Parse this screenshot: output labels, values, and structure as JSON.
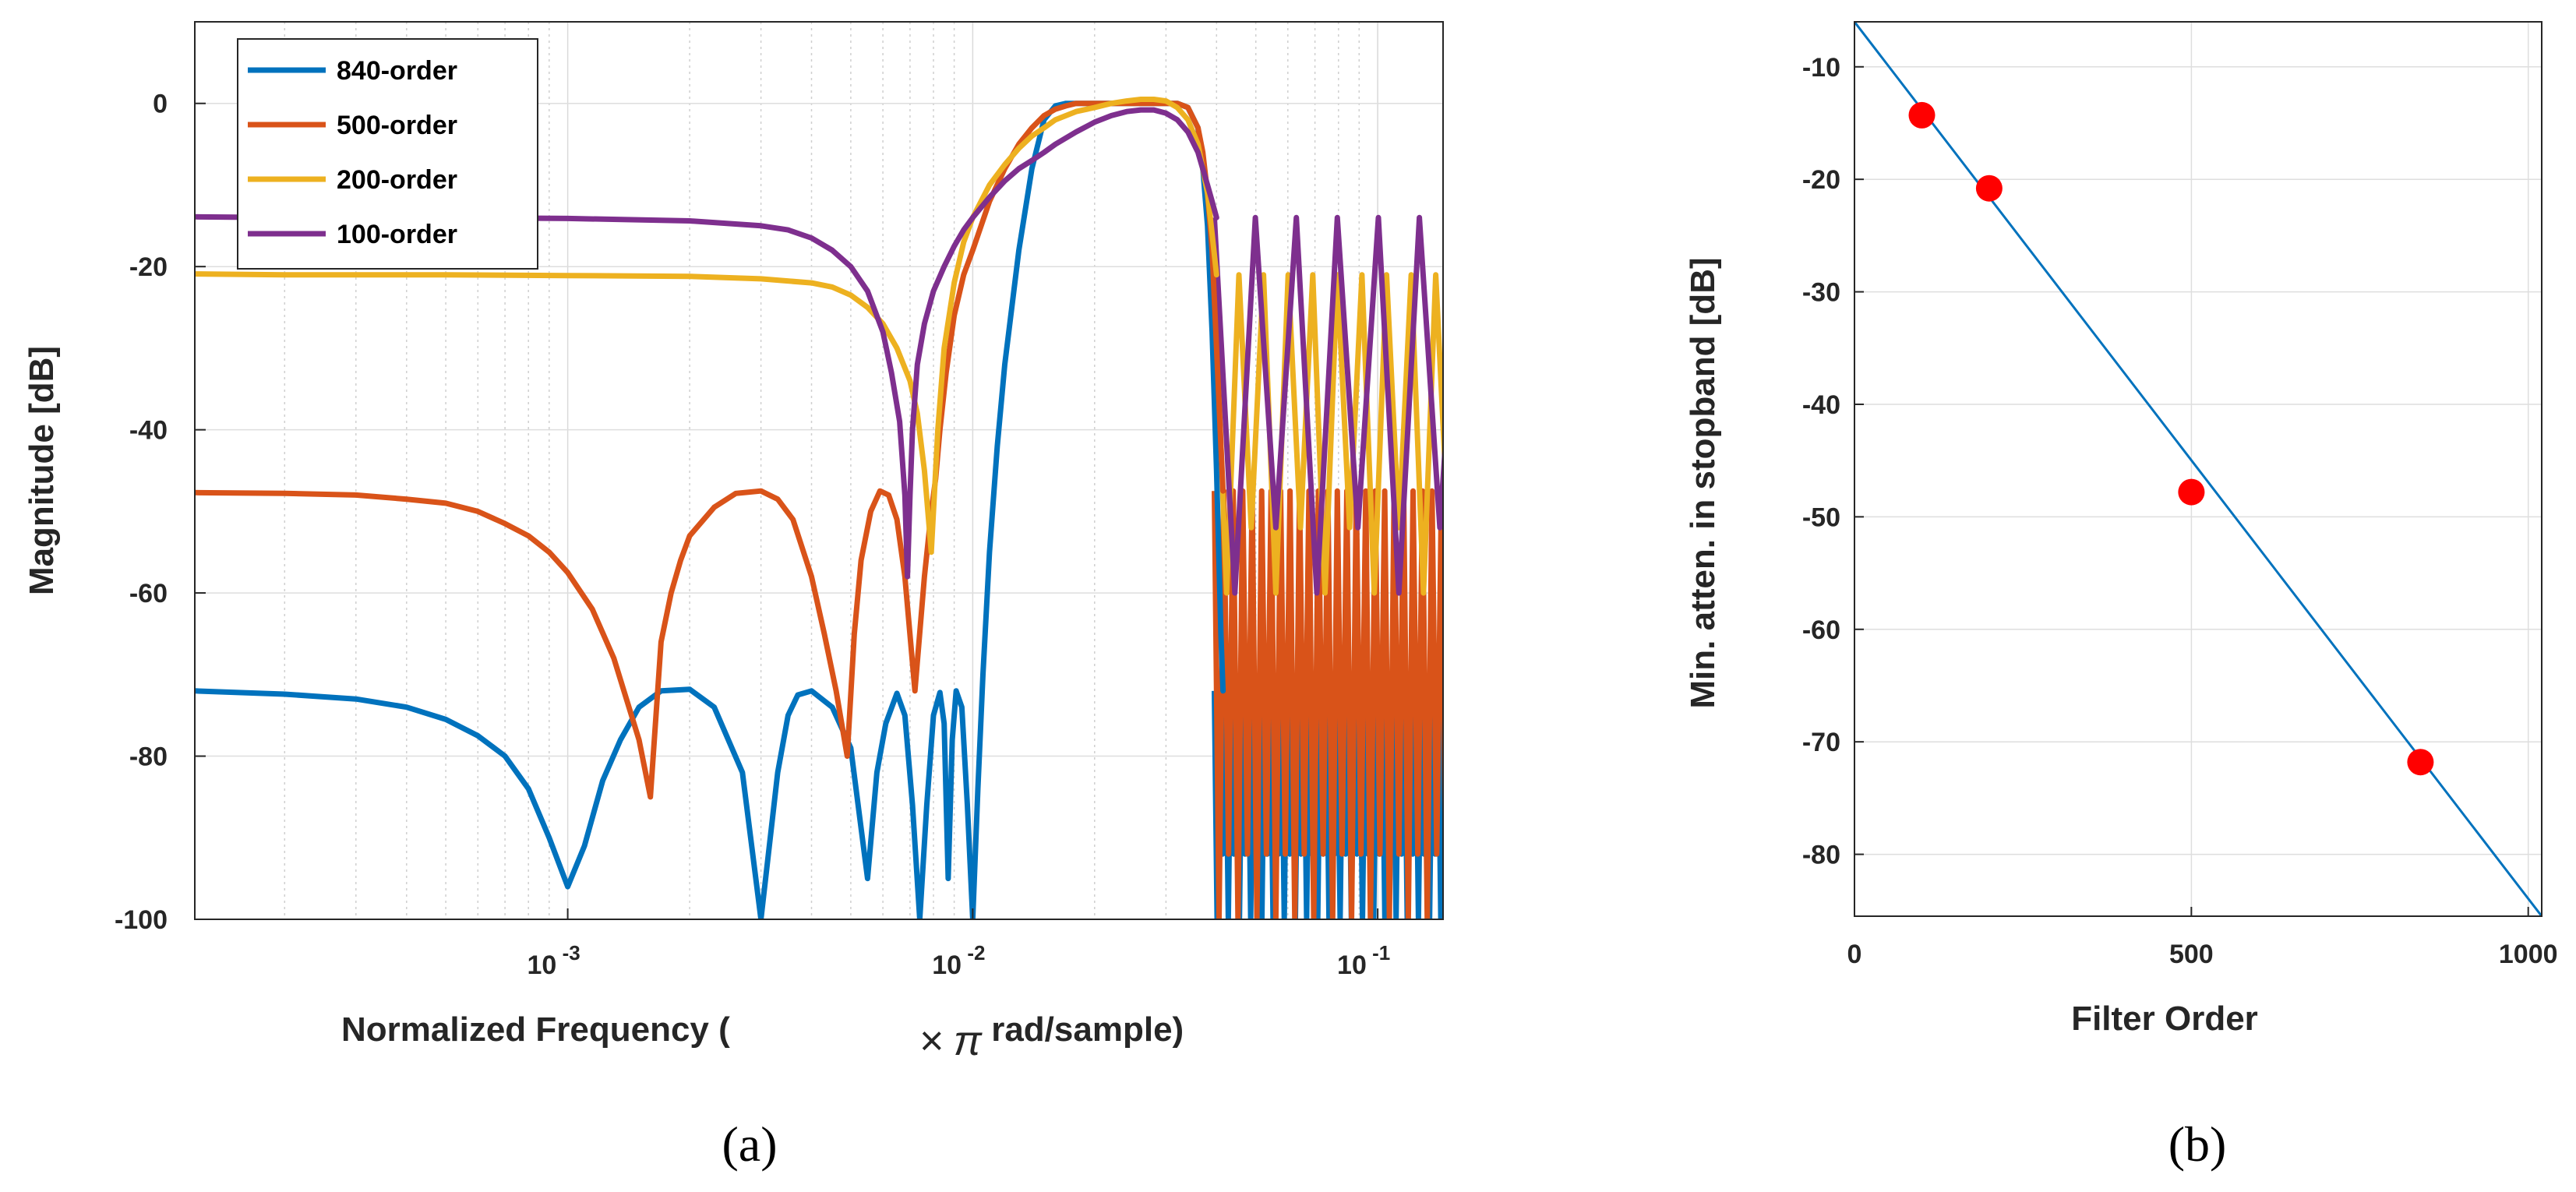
{
  "chart_data": [
    {
      "panel_label": "(a)",
      "type": "line",
      "xlabel_prefix": "Normalized Frequency (",
      "xlabel_times": "×",
      "xlabel_pi": "π",
      "xlabel_suffix": " rad/sample)",
      "ylabel": "Magnitude [dB]",
      "xscale": "log",
      "xlim": [
        0.00012,
        0.145
      ],
      "ylim": [
        -100,
        10
      ],
      "grid": true,
      "yticks": [
        0,
        -20,
        -40,
        -60,
        -80,
        -100
      ],
      "ytick_labels": [
        "0",
        "-20",
        "-40",
        "-60",
        "-80",
        "-100"
      ],
      "xticks": [
        {
          "value": 0.001,
          "base": "10",
          "exp": "-3"
        },
        {
          "value": 0.01,
          "base": "10",
          "exp": "-2"
        },
        {
          "value": 0.1,
          "base": "10",
          "exp": "-1"
        }
      ],
      "legend_position": "top-left",
      "series": [
        {
          "name": "840-order",
          "color": "#0072BD",
          "x": [
            0.00012,
            0.0002,
            0.0003,
            0.0004,
            0.0005,
            0.0006,
            0.0007,
            0.0008,
            0.0009,
            0.001,
            0.0011,
            0.00122,
            0.00135,
            0.0015,
            0.0017,
            0.002,
            0.0023,
            0.0027,
            0.003,
            0.0033,
            0.0035,
            0.0037,
            0.004,
            0.0045,
            0.005,
            0.0055,
            0.0058,
            0.0061,
            0.0065,
            0.0068,
            0.0071,
            0.0074,
            0.0077,
            0.008,
            0.0083,
            0.0085,
            0.0087,
            0.0089,
            0.0091,
            0.0094,
            0.0097,
            0.01,
            0.0103,
            0.0106,
            0.011,
            0.0115,
            0.012,
            0.013,
            0.014,
            0.015,
            0.016,
            0.017,
            0.018,
            0.02,
            0.022,
            0.024,
            0.026,
            0.028,
            0.03,
            0.032,
            0.034,
            0.036,
            0.037,
            0.038,
            0.039,
            0.04,
            0.041,
            0.0415
          ],
          "y": [
            -72,
            -72.4,
            -73,
            -74,
            -75.5,
            -77.5,
            -80,
            -84,
            -90,
            -96,
            -91,
            -83,
            -78,
            -74,
            -72,
            -71.8,
            -74,
            -82,
            -100,
            -82,
            -75,
            -72.5,
            -72,
            -74,
            -79,
            -95,
            -82,
            -76,
            -72.3,
            -75,
            -86,
            -100,
            -86,
            -75,
            -72.2,
            -76,
            -95,
            -78,
            -72,
            -74,
            -86,
            -100,
            -84,
            -70,
            -55,
            -42,
            -32,
            -18,
            -8,
            -2,
            -0.3,
            0,
            0,
            0,
            0,
            0,
            0,
            0,
            0,
            0,
            -0.5,
            -3,
            -8,
            -15,
            -28,
            -45,
            -65,
            -72
          ]
        },
        {
          "name": "500-order",
          "color": "#D95319",
          "x": [
            0.00012,
            0.0002,
            0.0003,
            0.0004,
            0.0005,
            0.0006,
            0.0007,
            0.0008,
            0.0009,
            0.001,
            0.00115,
            0.0013,
            0.0015,
            0.0016,
            0.0017,
            0.0018,
            0.0019,
            0.002,
            0.0023,
            0.0026,
            0.003,
            0.0033,
            0.0036,
            0.004,
            0.0043,
            0.0046,
            0.0049,
            0.0051,
            0.0053,
            0.0056,
            0.0059,
            0.0062,
            0.0065,
            0.0068,
            0.0072,
            0.0076,
            0.0079,
            0.0081,
            0.0083,
            0.0086,
            0.009,
            0.0095,
            0.01,
            0.011,
            0.012,
            0.013,
            0.014,
            0.015,
            0.016,
            0.017,
            0.018,
            0.02,
            0.022,
            0.024,
            0.026,
            0.028,
            0.03,
            0.032,
            0.034,
            0.036,
            0.037,
            0.038,
            0.039,
            0.04,
            0.041,
            0.0415
          ],
          "y": [
            -47.7,
            -47.8,
            -48,
            -48.5,
            -49,
            -50,
            -51.5,
            -53,
            -55,
            -57.5,
            -62,
            -68,
            -78,
            -85,
            -66,
            -60,
            -56,
            -53,
            -49.5,
            -47.8,
            -47.5,
            -48.5,
            -51,
            -58,
            -65,
            -72,
            -80,
            -65,
            -56,
            -50,
            -47.5,
            -48,
            -51,
            -58,
            -72,
            -58,
            -50,
            -46,
            -40,
            -33,
            -26,
            -21,
            -18,
            -12,
            -8,
            -5,
            -3,
            -1.5,
            -0.7,
            -0.3,
            0,
            0,
            0,
            0,
            0,
            0,
            0,
            0,
            -0.5,
            -3,
            -6,
            -11,
            -18,
            -30,
            -42,
            -47.5
          ]
        },
        {
          "name": "200-order",
          "color": "#EDB120",
          "x": [
            0.00012,
            0.0002,
            0.0005,
            0.001,
            0.002,
            0.003,
            0.004,
            0.0045,
            0.005,
            0.0055,
            0.006,
            0.0065,
            0.007,
            0.0073,
            0.0076,
            0.0079,
            0.0082,
            0.0085,
            0.009,
            0.0095,
            0.01,
            0.011,
            0.012,
            0.013,
            0.014,
            0.015,
            0.016,
            0.018,
            0.02,
            0.022,
            0.024,
            0.026,
            0.028,
            0.03,
            0.032,
            0.034,
            0.036,
            0.038,
            0.039,
            0.04
          ],
          "y": [
            -20.9,
            -21,
            -21,
            -21.1,
            -21.2,
            -21.5,
            -22,
            -22.5,
            -23.5,
            -25,
            -27,
            -30,
            -34,
            -38,
            -45,
            -55,
            -40,
            -30,
            -22,
            -17,
            -14,
            -10,
            -7.5,
            -5.5,
            -4,
            -3,
            -2,
            -1,
            -0.5,
            0,
            0.3,
            0.5,
            0.5,
            0.3,
            -0.5,
            -2,
            -5,
            -11,
            -16,
            -21
          ]
        },
        {
          "name": "100-order",
          "color": "#7E2F8E",
          "x": [
            0.00012,
            0.0002,
            0.0005,
            0.001,
            0.002,
            0.003,
            0.0035,
            0.004,
            0.0045,
            0.005,
            0.0055,
            0.006,
            0.0063,
            0.0066,
            0.0068,
            0.0069,
            0.007,
            0.0071,
            0.0073,
            0.0076,
            0.008,
            0.0085,
            0.009,
            0.0095,
            0.01,
            0.011,
            0.012,
            0.013,
            0.014,
            0.015,
            0.016,
            0.018,
            0.02,
            0.022,
            0.024,
            0.026,
            0.028,
            0.03,
            0.032,
            0.034,
            0.036,
            0.038,
            0.039,
            0.04
          ],
          "y": [
            -13.9,
            -14,
            -14,
            -14.1,
            -14.4,
            -15,
            -15.5,
            -16.5,
            -18,
            -20,
            -23,
            -28,
            -33,
            -39,
            -48,
            -58,
            -48,
            -40,
            -32,
            -27,
            -23,
            -20,
            -17.5,
            -15.5,
            -14,
            -11.5,
            -9.5,
            -8,
            -7,
            -6,
            -5,
            -3.5,
            -2.3,
            -1.5,
            -1,
            -0.8,
            -0.8,
            -1.2,
            -2,
            -3.5,
            -6,
            -10,
            -12,
            -14
          ]
        }
      ],
      "stopband_oscillation": [
        {
          "name": "840-order",
          "color": "#0072BD",
          "top": -72,
          "bottom": -100,
          "lobes": 44
        },
        {
          "name": "500-order",
          "color": "#D95319",
          "top": -47.5,
          "bottom": -100,
          "lobes": 26
        },
        {
          "name": "200-order",
          "color": "#EDB120",
          "top": -21,
          "bottom": -60,
          "lobes": 10
        },
        {
          "name": "100-order",
          "color": "#7E2F8E",
          "top": -14,
          "bottom": -60,
          "lobes": 6
        }
      ]
    },
    {
      "panel_label": "(b)",
      "type": "scatter",
      "xlabel": "Filter Order",
      "ylabel": "Min. atten. in stopband [dB]",
      "xlim": [
        0,
        1020
      ],
      "ylim": [
        -85.5,
        -6
      ],
      "grid": true,
      "xticks": [
        0,
        500,
        1000
      ],
      "xtick_labels": [
        "0",
        "500",
        "1000"
      ],
      "yticks": [
        -10,
        -20,
        -30,
        -40,
        -50,
        -60,
        -70,
        -80
      ],
      "ytick_labels": [
        "-10",
        "-20",
        "-30",
        "-40",
        "-50",
        "-60",
        "-70",
        "-80"
      ],
      "points": {
        "color": "#FF0000",
        "x": [
          100,
          200,
          500,
          840
        ],
        "y": [
          -14.3,
          -20.8,
          -47.8,
          -71.8
        ]
      },
      "fit_line": {
        "color": "#0072BD",
        "x": [
          0,
          1020
        ],
        "y": [
          -6,
          -85.5
        ]
      }
    }
  ]
}
